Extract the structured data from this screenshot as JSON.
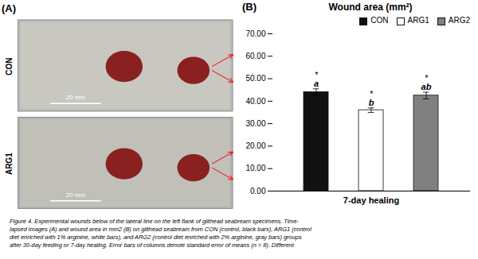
{
  "chart_data": {
    "type": "bar",
    "title": "Wound area (mm²)",
    "panel_label": "(B)",
    "xlabel": "7-day healing",
    "categories": [
      "CON",
      "ARG1",
      "ARG2"
    ],
    "values": [
      44.0,
      36.0,
      42.5
    ],
    "errors": [
      1.5,
      1.0,
      1.5
    ],
    "colors": [
      "#111111",
      "#ffffff",
      "#808080"
    ],
    "edge_color": "#111111",
    "annotations": [
      [
        "*",
        "a"
      ],
      [
        "*",
        "b"
      ],
      [
        "*",
        "ab"
      ]
    ],
    "ylim": [
      0,
      70.0
    ],
    "yticks": [
      {
        "value": 0.0,
        "label": "0.00"
      },
      {
        "value": 10.0,
        "label": "10.00"
      },
      {
        "value": 20.0,
        "label": "20.00"
      },
      {
        "value": 30.0,
        "label": "30.00"
      },
      {
        "value": 40.0,
        "label": "40.00"
      },
      {
        "value": 50.0,
        "label": "50.00"
      },
      {
        "value": 60.0,
        "label": "60.00"
      },
      {
        "value": 70.0,
        "label": "70.00"
      }
    ],
    "legend": "upper right",
    "tick_labels": "y",
    "grid": false
  },
  "image_panel": {
    "panel_label": "(A)",
    "labels": [
      "CON",
      "ARG1"
    ],
    "scale_bar_text": "20 mm"
  },
  "caption": [
    "Figure 4. Experimental wounds below of the lateral line on the left flank of gilthead seabream specimens. Time-",
    "lapsed images (A) and wound area in mm2 (B) on gilthead seabream from CON (control, black bars), ARG1 (control",
    "diet enriched with 1% arginine, white bars), and ARG2 (control diet enriched with 2% arginine, gray bars) groups",
    "after 30-day feeding or 7-day healing. Error bars of columns denote standard error of means (n = 8). Different"
  ]
}
